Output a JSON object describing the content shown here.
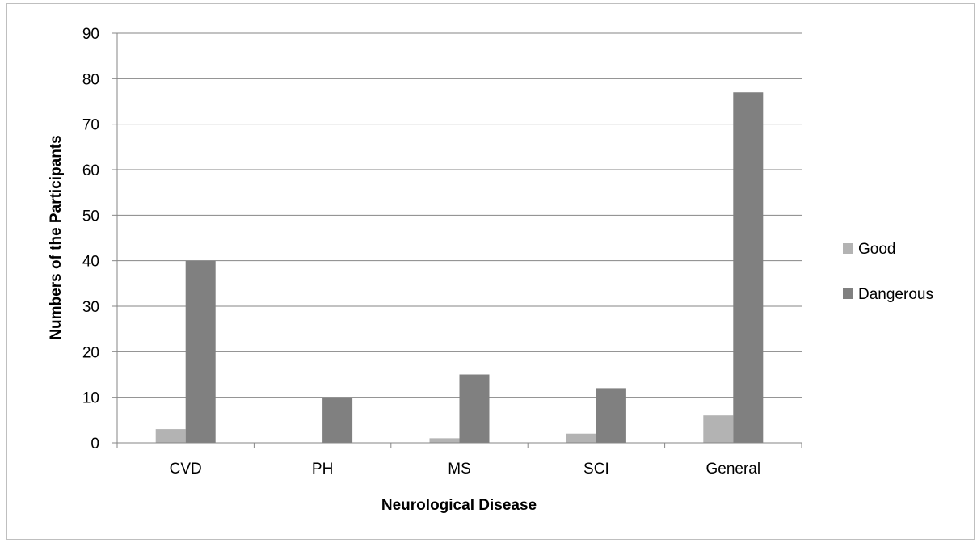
{
  "chart_data": {
    "type": "bar",
    "title": "",
    "xlabel": "Neurological Disease",
    "ylabel": "Numbers of the Participants",
    "categories": [
      "CVD",
      "PH",
      "MS",
      "SCI",
      "General"
    ],
    "series": [
      {
        "name": "Good",
        "values": [
          3,
          0,
          1,
          2,
          6
        ],
        "color": "#b3b3b3"
      },
      {
        "name": "Dangerous",
        "values": [
          40,
          10,
          15,
          12,
          77
        ],
        "color": "#808080"
      }
    ],
    "ylim": [
      0,
      90
    ],
    "yticks": [
      "0",
      "10",
      "20",
      "30",
      "40",
      "50",
      "60",
      "70",
      "80",
      "90"
    ],
    "grid": true,
    "legend_position": "right"
  }
}
